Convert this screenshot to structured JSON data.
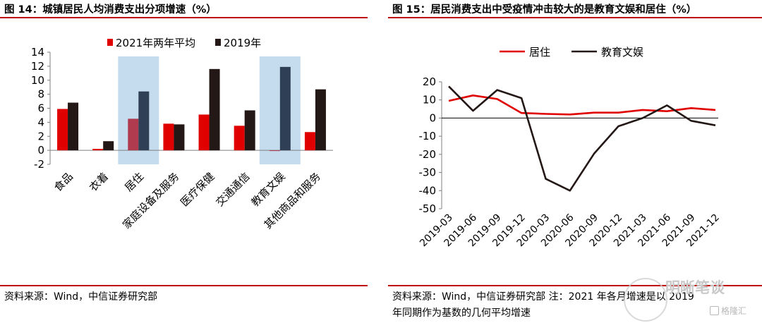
{
  "left": {
    "title": "图 14：城镇居民人均消费支出分项增速（%）",
    "source": "资料来源：Wind，中信证券研究部"
  },
  "right": {
    "title": "图 15：居民消费支出中受疫情冲击较大的是教育文娱和居住（%）",
    "source_line1": "资料来源：Wind，中信证券研究部  注：2021 年各月增速是以 2019",
    "source_line2": "年同期作为基数的几何平均增速"
  },
  "watermark": {
    "text": "明晰笔谈",
    "sub": "格隆汇"
  },
  "colors": {
    "rule": "#c00000",
    "red": "#e00000",
    "dark": "#231816",
    "highlight": "#c5dcef",
    "highlight_red": "#b03a4e",
    "highlight_dark": "#2f3f55"
  },
  "chart_data": [
    {
      "type": "bar",
      "categories": [
        "食品",
        "衣着",
        "居住",
        "家庭设备及服务",
        "医疗保健",
        "交通通信",
        "教育文娱",
        "其他商品和服务"
      ],
      "series": [
        {
          "name": "2021年两年平均",
          "values": [
            5.9,
            0.2,
            4.5,
            3.8,
            5.1,
            3.5,
            -0.1,
            2.6
          ]
        },
        {
          "name": "2019年",
          "values": [
            6.8,
            1.3,
            8.4,
            3.7,
            11.6,
            5.7,
            11.9,
            8.7
          ]
        }
      ],
      "highlight_categories": [
        "居住",
        "教育文娱"
      ],
      "ylim": [
        -2,
        14
      ],
      "yticks": [
        -2,
        0,
        2,
        4,
        6,
        8,
        10,
        12,
        14
      ],
      "legend": "top"
    },
    {
      "type": "line",
      "x": [
        "2019-03",
        "2019-06",
        "2019-09",
        "2019-12",
        "2020-03",
        "2020-06",
        "2020-09",
        "2020-12",
        "2021-03",
        "2021-06",
        "2021-09",
        "2021-12"
      ],
      "series": [
        {
          "name": "居住",
          "values": [
            9.5,
            12.5,
            10.5,
            2.8,
            2.3,
            2.0,
            3.0,
            3.0,
            4.5,
            3.8,
            5.5,
            4.5
          ]
        },
        {
          "name": "教育文娱",
          "values": [
            17.5,
            4.0,
            15.5,
            11.0,
            -33.5,
            -40.0,
            -19.5,
            -4.5,
            0.0,
            7.0,
            -1.5,
            -4.0
          ]
        }
      ],
      "ylim": [
        -50,
        20
      ],
      "yticks": [
        -50,
        -40,
        -30,
        -20,
        -10,
        0,
        10,
        20
      ],
      "legend": "top"
    }
  ]
}
